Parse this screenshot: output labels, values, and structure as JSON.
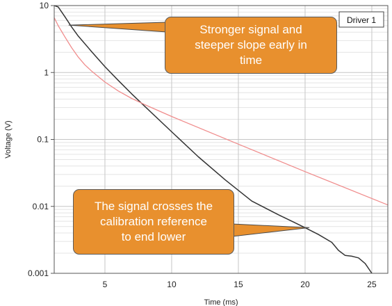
{
  "chart_data": {
    "type": "line",
    "xlabel": "Time (ms)",
    "ylabel": "Voltage (V)",
    "xlim": [
      1.2,
      26.2
    ],
    "ylim": [
      0.001,
      10
    ],
    "yscale": "log",
    "x_ticks": [
      5,
      10,
      15,
      20,
      25
    ],
    "y_ticks": [
      {
        "value": 10,
        "label": "10"
      },
      {
        "value": 1,
        "label": "1"
      },
      {
        "value": 0.1,
        "label": "0.1"
      },
      {
        "value": 0.01,
        "label": "0.01"
      },
      {
        "value": 0.001,
        "label": "0.001"
      }
    ],
    "grid": true,
    "legend": {
      "entries": [
        "Driver 1"
      ],
      "placement": "top-right"
    },
    "series": [
      {
        "name": "Driver 1",
        "color": "#333333",
        "x": [
          1.2,
          1.5,
          2.0,
          2.5,
          3.0,
          4.0,
          5.0,
          6.0,
          7.0,
          8.0,
          10.0,
          12.0,
          14.0,
          16.0,
          18.0,
          19.0,
          20.0,
          21.0,
          22.0,
          22.5,
          23.0,
          23.5,
          24.0,
          24.5,
          25.0
        ],
        "y": [
          10,
          9.5,
          6.8,
          4.8,
          3.5,
          2.05,
          1.22,
          0.76,
          0.48,
          0.31,
          0.13,
          0.055,
          0.025,
          0.012,
          0.0075,
          0.006,
          0.0048,
          0.0038,
          0.0029,
          0.0022,
          0.00185,
          0.0018,
          0.0017,
          0.0014,
          0.001
        ]
      },
      {
        "color": "#f08d8d",
        "x": [
          1.2,
          1.5,
          2.0,
          2.5,
          3.0,
          3.5,
          4.0,
          5.0,
          6.0,
          7.0,
          8.0,
          10.0,
          15.0,
          20.0,
          26.2
        ],
        "y": [
          6.6,
          5.0,
          3.4,
          2.35,
          1.7,
          1.3,
          1.05,
          0.72,
          0.53,
          0.41,
          0.33,
          0.22,
          0.085,
          0.033,
          0.0105
        ]
      }
    ],
    "annotations": [
      {
        "lines": [
          "Stronger signal and",
          "steeper slope early in",
          "time"
        ],
        "points_to": {
          "x": 2.3,
          "y": 5.1
        }
      },
      {
        "lines": [
          "The signal crosses the",
          "calibration reference",
          "to end lower"
        ],
        "points_to": {
          "x": 20.3,
          "y": 0.0048
        }
      }
    ]
  }
}
